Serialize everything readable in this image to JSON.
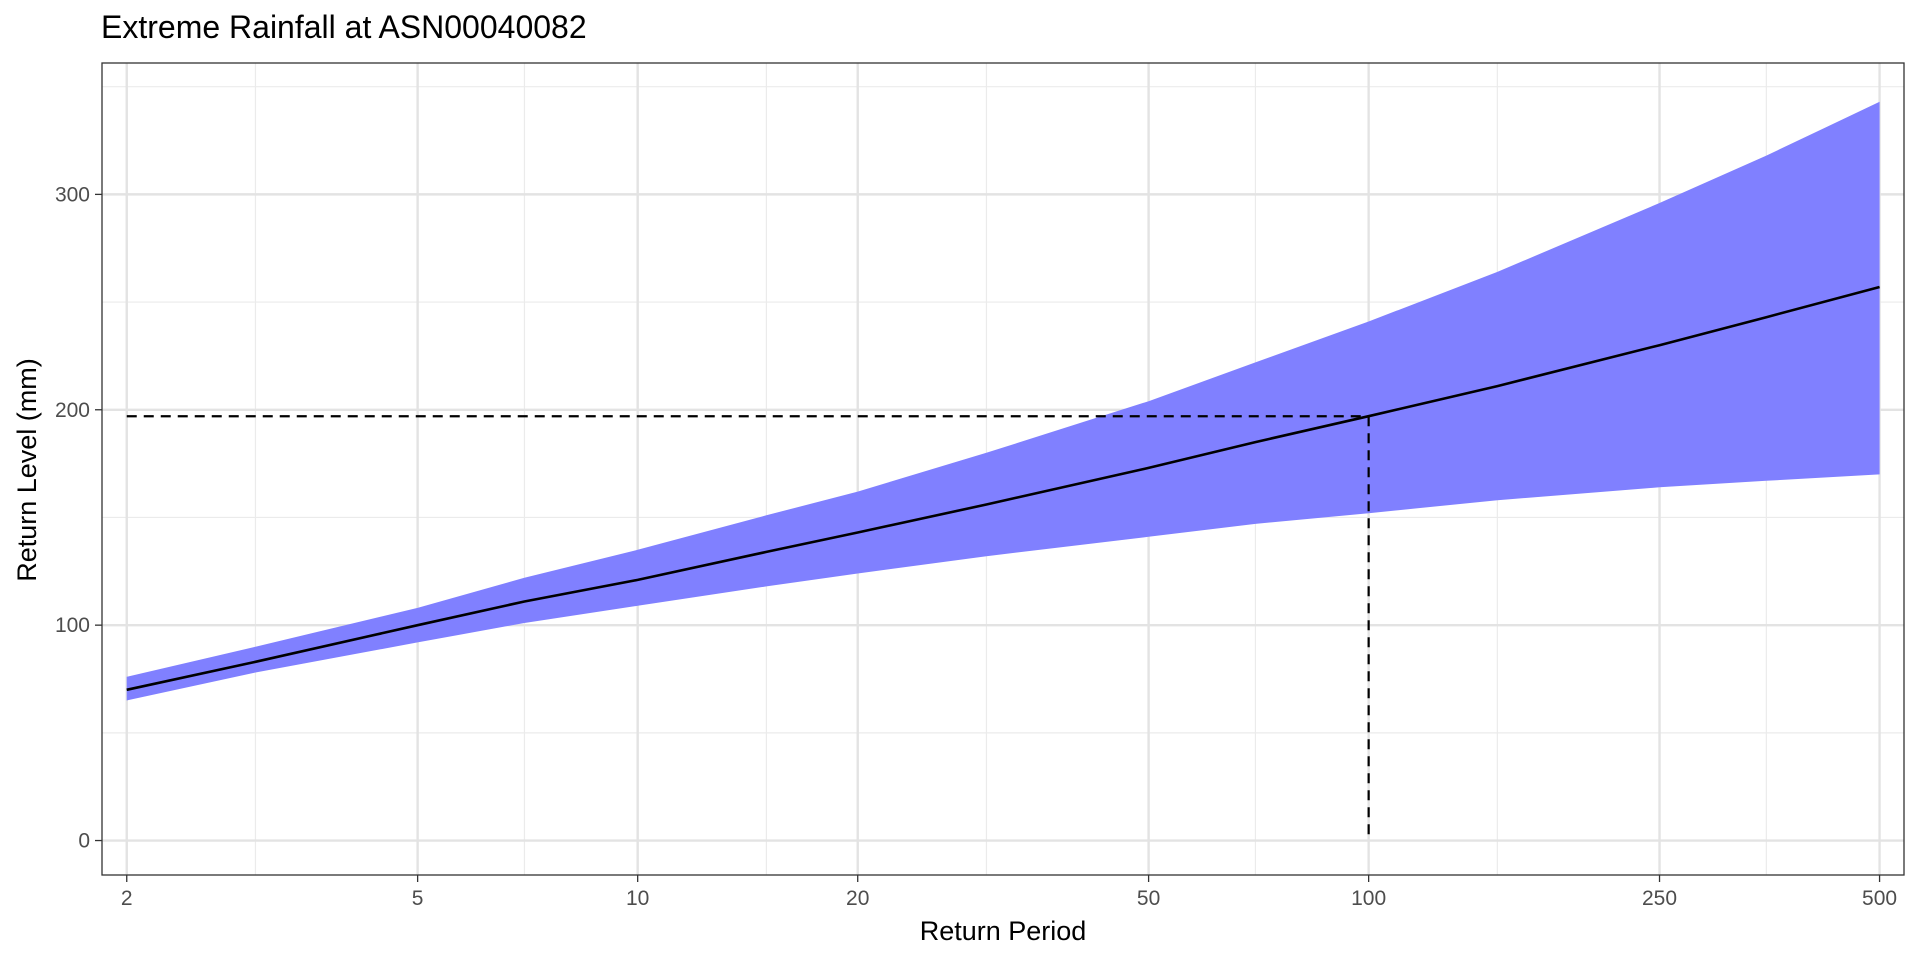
{
  "chart_data": {
    "type": "line",
    "title": "Extreme Rainfall at ASN00040082",
    "xlabel": "Return Period",
    "ylabel": "Return Level (mm)",
    "x_scale": "log",
    "xlim": [
      1.85,
      540
    ],
    "ylim": [
      -16,
      361
    ],
    "x_ticks": [
      2,
      5,
      10,
      20,
      50,
      100,
      250,
      500
    ],
    "x_tick_labels": [
      "2",
      "5",
      "10",
      "20",
      "50",
      "100",
      "250",
      "500"
    ],
    "x_minor_gridlines": [
      3,
      7,
      15,
      30,
      70,
      150,
      350
    ],
    "y_ticks": [
      0,
      100,
      200,
      300
    ],
    "y_tick_labels": [
      "0",
      "100",
      "200",
      "300"
    ],
    "y_minor_gridlines": [
      50,
      150,
      250,
      350
    ],
    "grid": true,
    "series": [
      {
        "role": "estimate",
        "style": "line",
        "color": "#000000",
        "x": [
          2,
          3,
          5,
          7,
          10,
          15,
          20,
          30,
          50,
          70,
          100,
          150,
          250,
          350,
          500
        ],
        "y": [
          70,
          83,
          100,
          111,
          121,
          134,
          143,
          156,
          173,
          185,
          197,
          211,
          230,
          243,
          257
        ]
      },
      {
        "role": "confidence-band",
        "style": "ribbon",
        "color": "#8080ff",
        "x": [
          2,
          3,
          5,
          7,
          10,
          15,
          20,
          30,
          50,
          70,
          100,
          150,
          250,
          350,
          500
        ],
        "lower": [
          65,
          78,
          92,
          101,
          109,
          118,
          124,
          132,
          141,
          147,
          152,
          158,
          164,
          167,
          170
        ],
        "upper": [
          76,
          90,
          108,
          122,
          135,
          151,
          162,
          180,
          204,
          222,
          241,
          264,
          296,
          318,
          343
        ]
      }
    ],
    "reference_lines": {
      "style": "dashed",
      "color": "#000000",
      "horizontal": {
        "y": 197,
        "x_from": 2,
        "x_to": 100
      },
      "vertical": {
        "x": 100,
        "y_from": 0,
        "y_to": 197
      }
    }
  }
}
